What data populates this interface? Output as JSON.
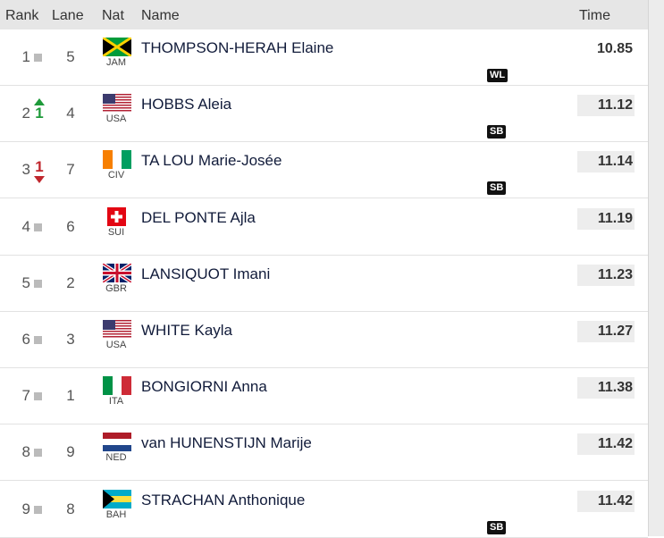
{
  "header": {
    "rank": "Rank",
    "lane": "Lane",
    "nat": "Nat",
    "name": "Name",
    "time": "Time"
  },
  "rows": [
    {
      "rank": 1,
      "change": null,
      "lane": 5,
      "nat": "JAM",
      "name": "THOMPSON-HERAH Elaine",
      "time": 10.85,
      "badge": "WL"
    },
    {
      "rank": 2,
      "change": {
        "dir": "up",
        "value": 1
      },
      "lane": 4,
      "nat": "USA",
      "name": "HOBBS Aleia",
      "time": 11.12,
      "badge": "SB"
    },
    {
      "rank": 3,
      "change": {
        "dir": "down",
        "value": 1
      },
      "lane": 7,
      "nat": "CIV",
      "name": "TA LOU Marie-Josée",
      "time": 11.14,
      "badge": "SB"
    },
    {
      "rank": 4,
      "change": null,
      "lane": 6,
      "nat": "SUI",
      "name": "DEL PONTE Ajla",
      "time": 11.19,
      "badge": null
    },
    {
      "rank": 5,
      "change": null,
      "lane": 2,
      "nat": "GBR",
      "name": "LANSIQUOT Imani",
      "time": 11.23,
      "badge": null
    },
    {
      "rank": 6,
      "change": null,
      "lane": 3,
      "nat": "USA",
      "name": "WHITE Kayla",
      "time": 11.27,
      "badge": null
    },
    {
      "rank": 7,
      "change": null,
      "lane": 1,
      "nat": "ITA",
      "name": "BONGIORNI Anna",
      "time": 11.38,
      "badge": null
    },
    {
      "rank": 8,
      "change": null,
      "lane": 9,
      "nat": "NED",
      "name": "van HUNENSTIJN Marije",
      "time": 11.42,
      "badge": null
    },
    {
      "rank": 9,
      "change": null,
      "lane": 8,
      "nat": "BAH",
      "name": "STRACHAN Anthonique",
      "time": 11.42,
      "badge": "SB"
    }
  ]
}
